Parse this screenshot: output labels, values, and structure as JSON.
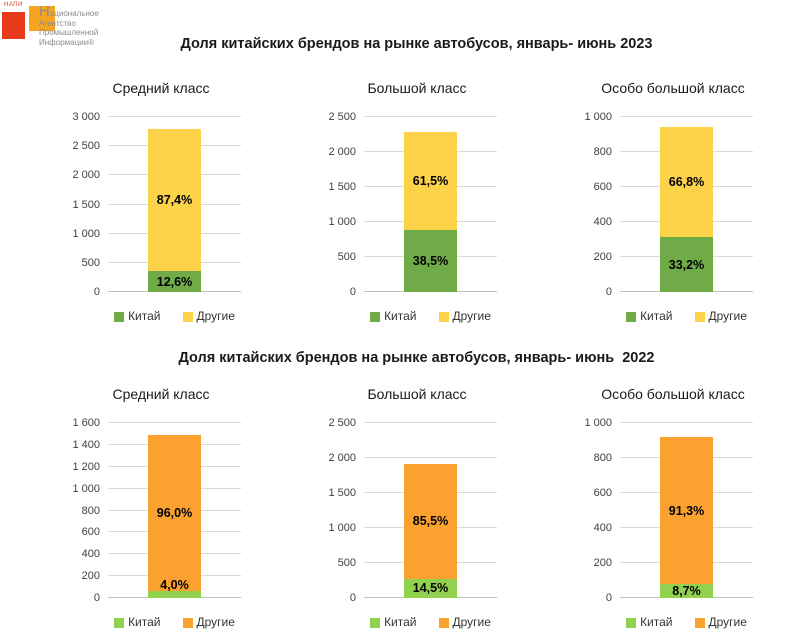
{
  "logo": {
    "mini": "НАПИ",
    "name_lines": [
      "Национальное",
      "Агентство",
      "Промышленной",
      "Информации®"
    ],
    "colors": {
      "red": "#E8391A",
      "orange": "#F7A421",
      "text": "#8C8C8C"
    }
  },
  "sections": [
    {
      "title": "Доля китайских брендов на рынке автобусов, январь- июнь 2023"
    },
    {
      "title": "Доля китайских брендов на рынке автобусов, январь- июнь  2022"
    }
  ],
  "chart_data": [
    {
      "type": "bar",
      "stacked": true,
      "period": "2023",
      "title": "Средний класс",
      "ylim": [
        0,
        3000
      ],
      "grid": true,
      "legend_position": "bottom",
      "yticks": [
        {
          "v": 0,
          "label": "0"
        },
        {
          "v": 500,
          "label": "500"
        },
        {
          "v": 1000,
          "label": "1 000"
        },
        {
          "v": 1500,
          "label": "1 500"
        },
        {
          "v": 2000,
          "label": "2 000"
        },
        {
          "v": 2500,
          "label": "2 500"
        },
        {
          "v": 3000,
          "label": "3 000"
        }
      ],
      "series": [
        {
          "name": "Китай",
          "value": 352,
          "label": "12,6%",
          "color": "#6FAC47"
        },
        {
          "name": "Другие",
          "value": 2438,
          "label": "87,4%",
          "color": "#FBD248"
        }
      ]
    },
    {
      "type": "bar",
      "stacked": true,
      "period": "2023",
      "title": "Большой класс",
      "ylim": [
        0,
        2500
      ],
      "grid": true,
      "legend_position": "bottom",
      "yticks": [
        {
          "v": 0,
          "label": "0"
        },
        {
          "v": 500,
          "label": "500"
        },
        {
          "v": 1000,
          "label": "1 000"
        },
        {
          "v": 1500,
          "label": "1 500"
        },
        {
          "v": 2000,
          "label": "2 000"
        },
        {
          "v": 2500,
          "label": "2 500"
        }
      ],
      "series": [
        {
          "name": "Китай",
          "value": 882,
          "label": "38,5%",
          "color": "#6FAC47"
        },
        {
          "name": "Другие",
          "value": 1408,
          "label": "61,5%",
          "color": "#FBD248"
        }
      ]
    },
    {
      "type": "bar",
      "stacked": true,
      "period": "2023",
      "title": "Особо большой класс",
      "ylim": [
        0,
        1000
      ],
      "grid": true,
      "legend_position": "bottom",
      "yticks": [
        {
          "v": 0,
          "label": "0"
        },
        {
          "v": 200,
          "label": "200"
        },
        {
          "v": 400,
          "label": "400"
        },
        {
          "v": 600,
          "label": "600"
        },
        {
          "v": 800,
          "label": "800"
        },
        {
          "v": 1000,
          "label": "1 000"
        }
      ],
      "series": [
        {
          "name": "Китай",
          "value": 314,
          "label": "33,2%",
          "color": "#6FAC47"
        },
        {
          "name": "Другие",
          "value": 631,
          "label": "66,8%",
          "color": "#FBD248"
        }
      ]
    },
    {
      "type": "bar",
      "stacked": true,
      "period": "2022",
      "title": "Средний класс",
      "ylim": [
        0,
        1600
      ],
      "grid": true,
      "legend_position": "bottom",
      "yticks": [
        {
          "v": 0,
          "label": "0"
        },
        {
          "v": 200,
          "label": "200"
        },
        {
          "v": 400,
          "label": "400"
        },
        {
          "v": 600,
          "label": "600"
        },
        {
          "v": 800,
          "label": "800"
        },
        {
          "v": 1000,
          "label": "1 000"
        },
        {
          "v": 1200,
          "label": "1 200"
        },
        {
          "v": 1400,
          "label": "1 400"
        },
        {
          "v": 1600,
          "label": "1 600"
        }
      ],
      "series": [
        {
          "name": "Китай",
          "value": 60,
          "label": "4,0%",
          "color": "#92D050"
        },
        {
          "name": "Другие",
          "value": 1430,
          "label": "96,0%",
          "color": "#FBA130"
        }
      ]
    },
    {
      "type": "bar",
      "stacked": true,
      "period": "2022",
      "title": "Большой класс",
      "ylim": [
        0,
        2500
      ],
      "grid": true,
      "legend_position": "bottom",
      "yticks": [
        {
          "v": 0,
          "label": "0"
        },
        {
          "v": 500,
          "label": "500"
        },
        {
          "v": 1000,
          "label": "1 000"
        },
        {
          "v": 1500,
          "label": "1 500"
        },
        {
          "v": 2000,
          "label": "2 000"
        },
        {
          "v": 2500,
          "label": "2 500"
        }
      ],
      "series": [
        {
          "name": "Китай",
          "value": 278,
          "label": "14,5%",
          "color": "#92D050"
        },
        {
          "name": "Другие",
          "value": 1637,
          "label": "85,5%",
          "color": "#FBA130"
        }
      ]
    },
    {
      "type": "bar",
      "stacked": true,
      "period": "2022",
      "title": "Особо большой класс",
      "ylim": [
        0,
        1000
      ],
      "grid": true,
      "legend_position": "bottom",
      "yticks": [
        {
          "v": 0,
          "label": "0"
        },
        {
          "v": 200,
          "label": "200"
        },
        {
          "v": 400,
          "label": "400"
        },
        {
          "v": 600,
          "label": "600"
        },
        {
          "v": 800,
          "label": "800"
        },
        {
          "v": 1000,
          "label": "1 000"
        }
      ],
      "series": [
        {
          "name": "Китай",
          "value": 80,
          "label": "8,7%",
          "color": "#92D050"
        },
        {
          "name": "Другие",
          "value": 838,
          "label": "91,3%",
          "color": "#FBA130"
        }
      ]
    }
  ]
}
